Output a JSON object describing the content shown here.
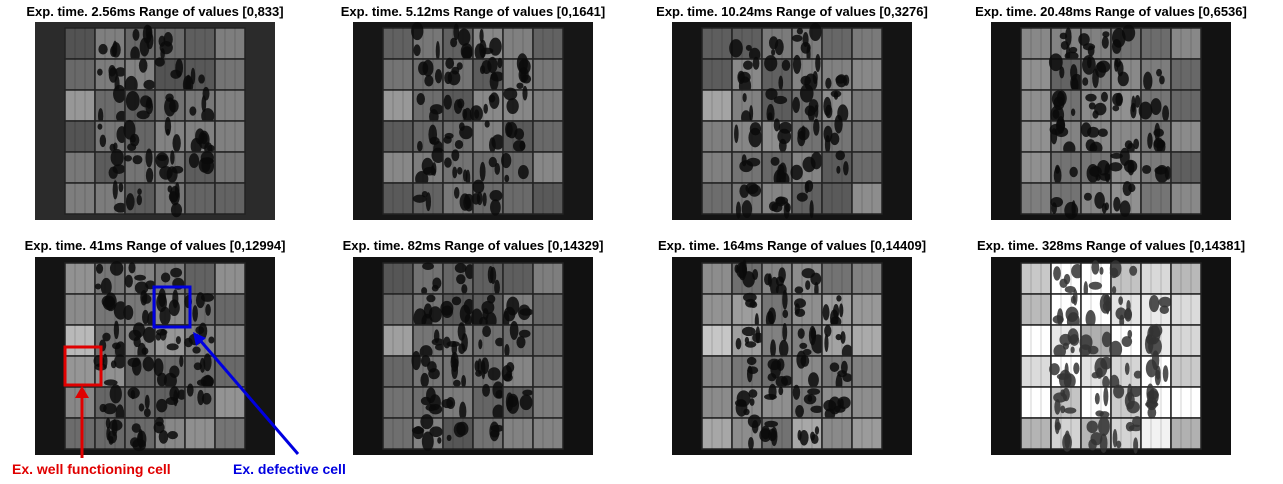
{
  "panels": [
    {
      "title": "Exp. time. 2.56ms Range of values [0,833]"
    },
    {
      "title": "Exp. time. 5.12ms Range of values [0,1641]"
    },
    {
      "title": "Exp. time. 10.24ms Range of values [0,3276]"
    },
    {
      "title": "Exp. time. 20.48ms Range of values [0,6536]"
    },
    {
      "title": "Exp. time. 41ms Range of values [0,12994]"
    },
    {
      "title": "Exp. time. 82ms Range of values [0,14329]"
    },
    {
      "title": "Exp. time. 164ms Range of values [0,14409]"
    },
    {
      "title": "Exp. time. 328ms Range of values [0,14381]"
    }
  ],
  "annotations": {
    "good": "Ex. well functioning cell",
    "bad": "Ex. defective cell"
  }
}
